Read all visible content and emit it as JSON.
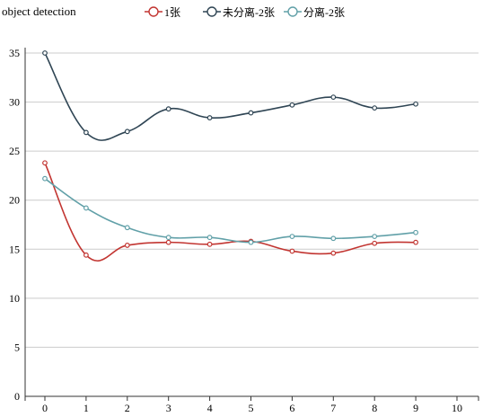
{
  "chart_data": {
    "type": "line",
    "title": "object detection",
    "x": [
      0,
      1,
      2,
      3,
      4,
      5,
      6,
      7,
      8,
      9
    ],
    "xticks": [
      "0",
      "1",
      "2",
      "3",
      "4",
      "5",
      "6",
      "7",
      "8",
      "9",
      "10"
    ],
    "xlim": [
      0,
      10
    ],
    "ylim": [
      0,
      35
    ],
    "yticks": [
      "0",
      "5",
      "10",
      "15",
      "20",
      "25",
      "30",
      "35"
    ],
    "grid": true,
    "legend_position": "top",
    "series": [
      {
        "name": "1张",
        "color": "#c23531",
        "values": [
          23.8,
          14.4,
          15.4,
          15.7,
          15.5,
          15.8,
          14.8,
          14.6,
          15.6,
          15.7
        ]
      },
      {
        "name": "未分离-2张",
        "color": "#2f4554",
        "values": [
          35.0,
          26.9,
          27.0,
          29.3,
          28.4,
          28.9,
          29.7,
          30.5,
          29.4,
          29.8
        ]
      },
      {
        "name": "分离-2张",
        "color": "#61a0a8",
        "values": [
          22.2,
          19.2,
          17.2,
          16.2,
          16.2,
          15.7,
          16.3,
          16.1,
          16.3,
          16.7
        ]
      }
    ]
  }
}
